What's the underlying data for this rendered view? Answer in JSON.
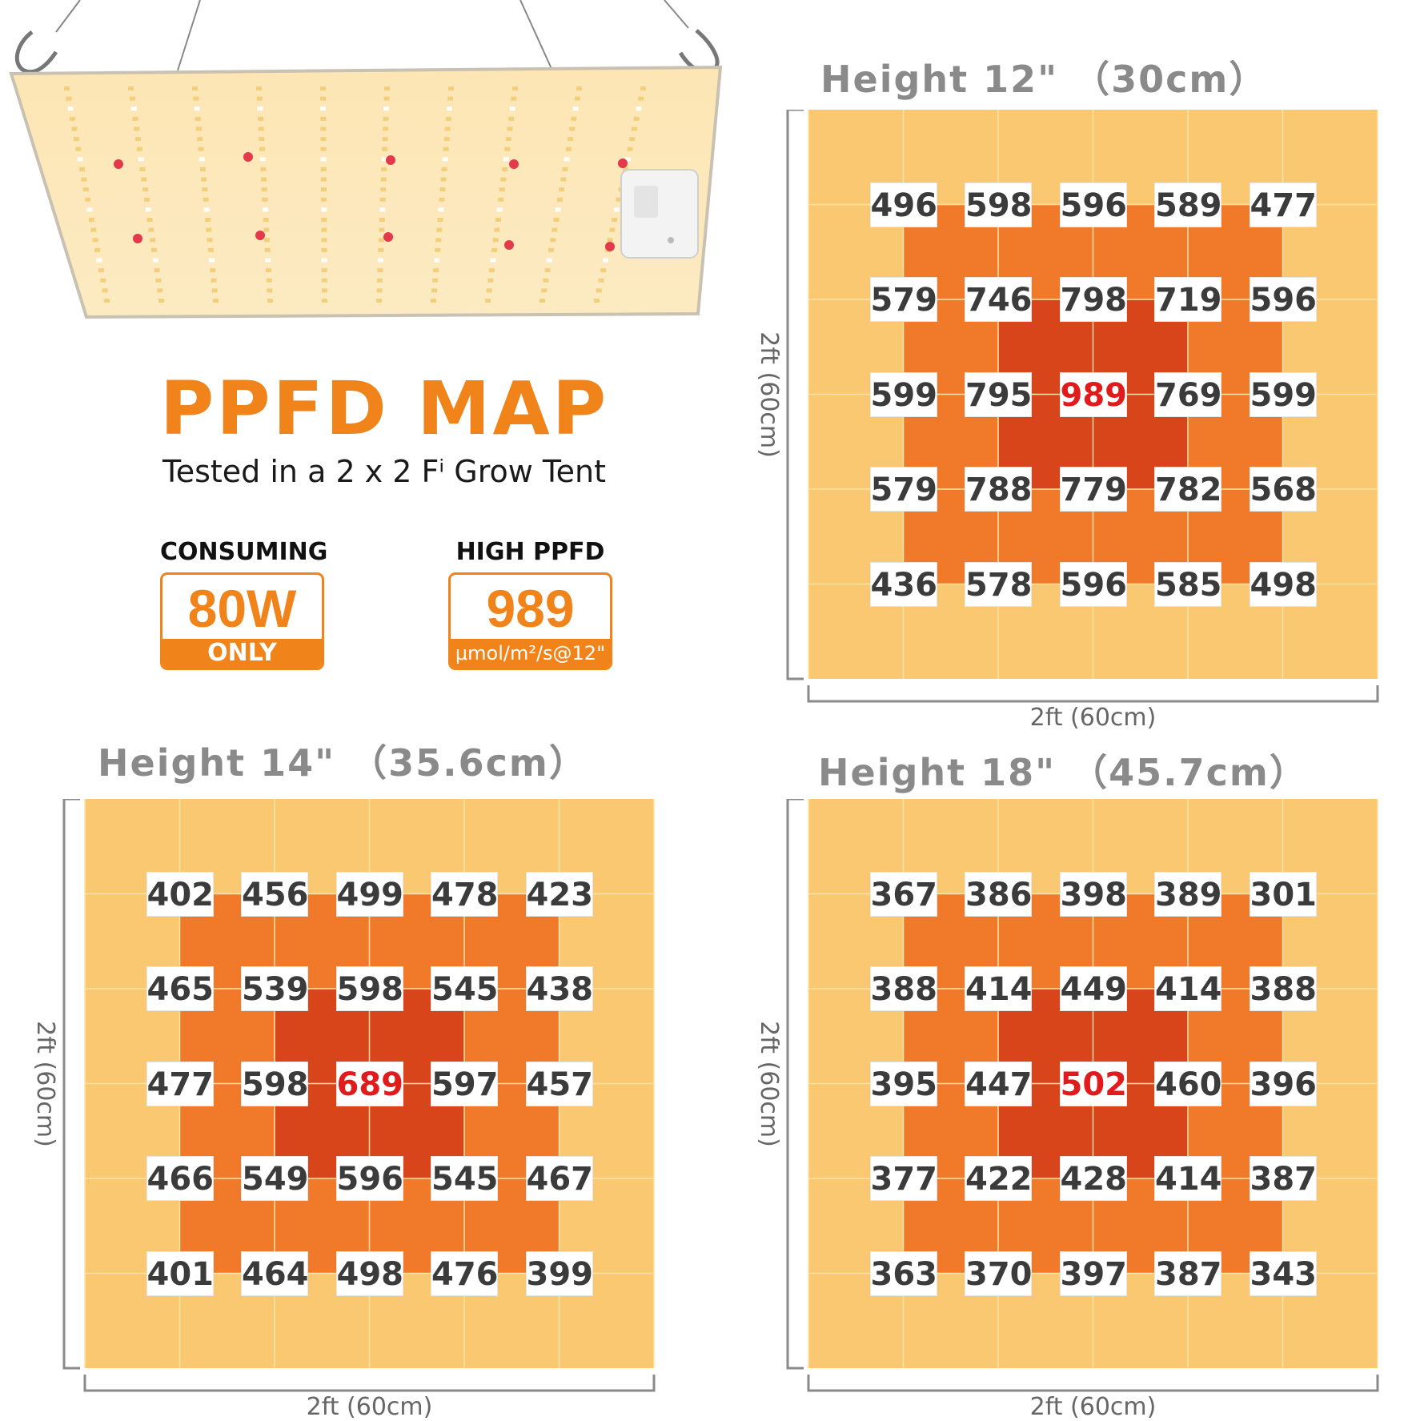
{
  "headline": {
    "title": "PPFD MAP",
    "subtitle": "Tested in a 2 x 2 Fⁱ Grow Tent"
  },
  "stats": [
    {
      "label": "CONSUMING",
      "value": "80W",
      "foot": "ONLY"
    },
    {
      "label": "HIGH PPFD",
      "value": "989",
      "foot": "μmol/m²/s@12\""
    }
  ],
  "colors": {
    "orange_accent": "#f0841a",
    "cell_light": "#f9c870",
    "cell_mid": "#f07a2a",
    "cell_dark": "#d8451a",
    "peak_text": "#e11b1b"
  },
  "chart_data": [
    {
      "type": "heatmap",
      "title": "Height 12\" （30cm）",
      "xlabel": "2ft (60cm)",
      "ylabel": "2ft (60cm)",
      "units": "μmol/m²/s",
      "rows": [
        [
          496,
          598,
          596,
          589,
          477
        ],
        [
          579,
          746,
          798,
          719,
          596
        ],
        [
          599,
          795,
          989,
          769,
          599
        ],
        [
          579,
          788,
          779,
          782,
          568
        ],
        [
          436,
          578,
          596,
          585,
          498
        ]
      ],
      "peak": 989
    },
    {
      "type": "heatmap",
      "title": "Height 14\" （35.6cm）",
      "xlabel": "2ft (60cm)",
      "ylabel": "2ft (60cm)",
      "units": "μmol/m²/s",
      "rows": [
        [
          402,
          456,
          499,
          478,
          423
        ],
        [
          465,
          539,
          598,
          545,
          438
        ],
        [
          477,
          598,
          689,
          597,
          457
        ],
        [
          466,
          549,
          596,
          545,
          467
        ],
        [
          401,
          464,
          498,
          476,
          399
        ]
      ],
      "peak": 689
    },
    {
      "type": "heatmap",
      "title": "Height 18\" （45.7cm）",
      "xlabel": "2ft (60cm)",
      "ylabel": "2ft (60cm)",
      "units": "μmol/m²/s",
      "rows": [
        [
          367,
          386,
          398,
          389,
          301
        ],
        [
          388,
          414,
          449,
          414,
          388
        ],
        [
          395,
          447,
          502,
          460,
          396
        ],
        [
          377,
          422,
          428,
          414,
          387
        ],
        [
          363,
          370,
          397,
          387,
          343
        ]
      ],
      "peak": 502
    }
  ]
}
